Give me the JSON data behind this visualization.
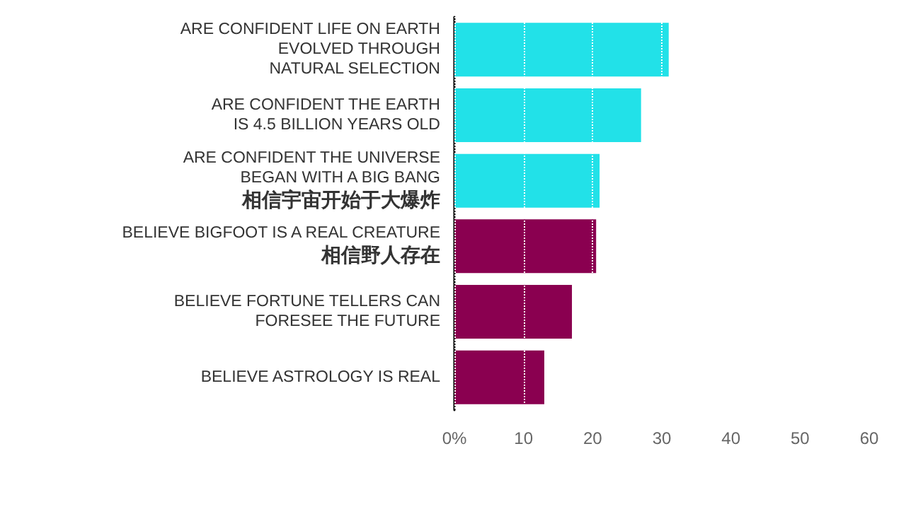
{
  "chart_data": {
    "type": "bar",
    "orientation": "horizontal",
    "categories": [
      "ARE CONFIDENT LIFE ON EARTH\nEVOLVED THROUGH\nNATURAL SELECTION",
      "ARE CONFIDENT THE EARTH\nIS 4.5 BILLION YEARS OLD",
      "ARE CONFIDENT THE UNIVERSE\nBEGAN WITH A BIG BANG\n相信宇宙开始于大爆炸",
      "BELIEVE BIGFOOT IS A REAL CREATURE\n相信野人存在",
      "BELIEVE FORTUNE TELLERS CAN\nFORESEE THE FUTURE",
      "BELIEVE ASTROLOGY IS REAL"
    ],
    "values": [
      31,
      27,
      21,
      20.5,
      17,
      13
    ],
    "colors": [
      "#22e1e8",
      "#22e1e8",
      "#22e1e8",
      "#8a0050",
      "#8a0050",
      "#8a0050"
    ],
    "xlim": [
      0,
      60
    ],
    "xticks": [
      {
        "value": 0,
        "label": "0%"
      },
      10,
      20,
      30,
      40,
      50,
      60
    ],
    "grid": "x"
  }
}
